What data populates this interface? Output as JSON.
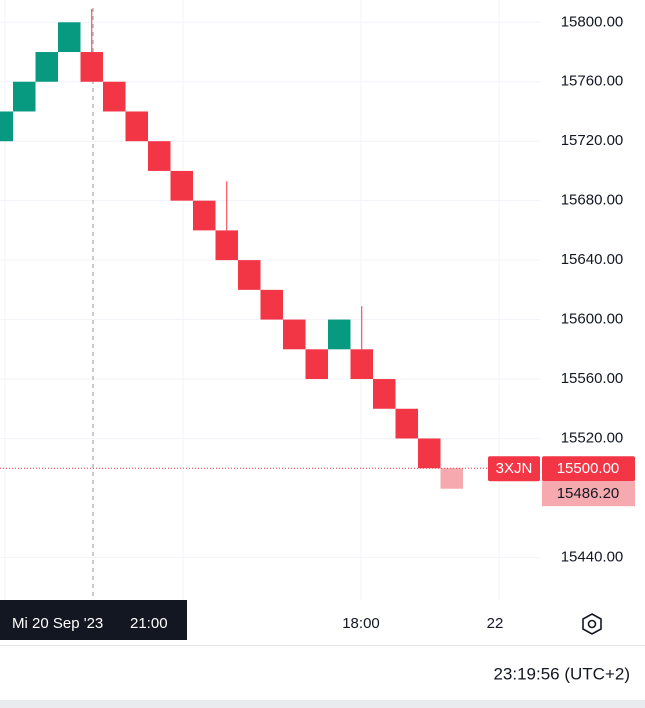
{
  "chart_data": {
    "type": "renko",
    "open": [
      15720,
      15740,
      15760,
      15780,
      15780,
      15760,
      15740,
      15720,
      15700,
      15680,
      15660,
      15640,
      15620,
      15600,
      15580,
      15580,
      15580,
      15560,
      15540,
      15520,
      15500
    ],
    "close": [
      15740,
      15760,
      15780,
      15800,
      15760,
      15740,
      15720,
      15700,
      15680,
      15660,
      15640,
      15620,
      15600,
      15580,
      15560,
      15600,
      15560,
      15540,
      15520,
      15500,
      15486.2
    ],
    "high": [
      null,
      null,
      null,
      null,
      15809,
      null,
      null,
      null,
      null,
      null,
      15693,
      null,
      null,
      null,
      null,
      null,
      15609,
      null,
      null,
      null,
      null
    ],
    "up_color": "#089981",
    "down_color": "#f23645",
    "current_color": "#f7a9b0",
    "ylim": [
      15411,
      15815
    ],
    "yticks": [
      {
        "value": 15440,
        "label": "15440.00"
      },
      {
        "value": 15520,
        "label": "15520.00"
      },
      {
        "value": 15560,
        "label": "15560.00"
      },
      {
        "value": 15600,
        "label": "15600.00"
      },
      {
        "value": 15640,
        "label": "15640.00"
      },
      {
        "value": 15680,
        "label": "15680.00"
      },
      {
        "value": 15720,
        "label": "15720.00"
      },
      {
        "value": 15760,
        "label": "15760.00"
      },
      {
        "value": 15800,
        "label": "15800.00"
      }
    ],
    "xticks": [
      "18:00",
      "22"
    ],
    "grid": true,
    "symbol_tag": "3XJN",
    "last_price": {
      "value": 15500,
      "label": "15500.00"
    },
    "current_price": {
      "value": 15486.2,
      "label": "15486.20"
    },
    "crosshair_date": "Mi 20 Sep '23",
    "crosshair_time": "21:00"
  },
  "status_bar": {
    "clock": "23:19:56 (UTC+2)"
  }
}
